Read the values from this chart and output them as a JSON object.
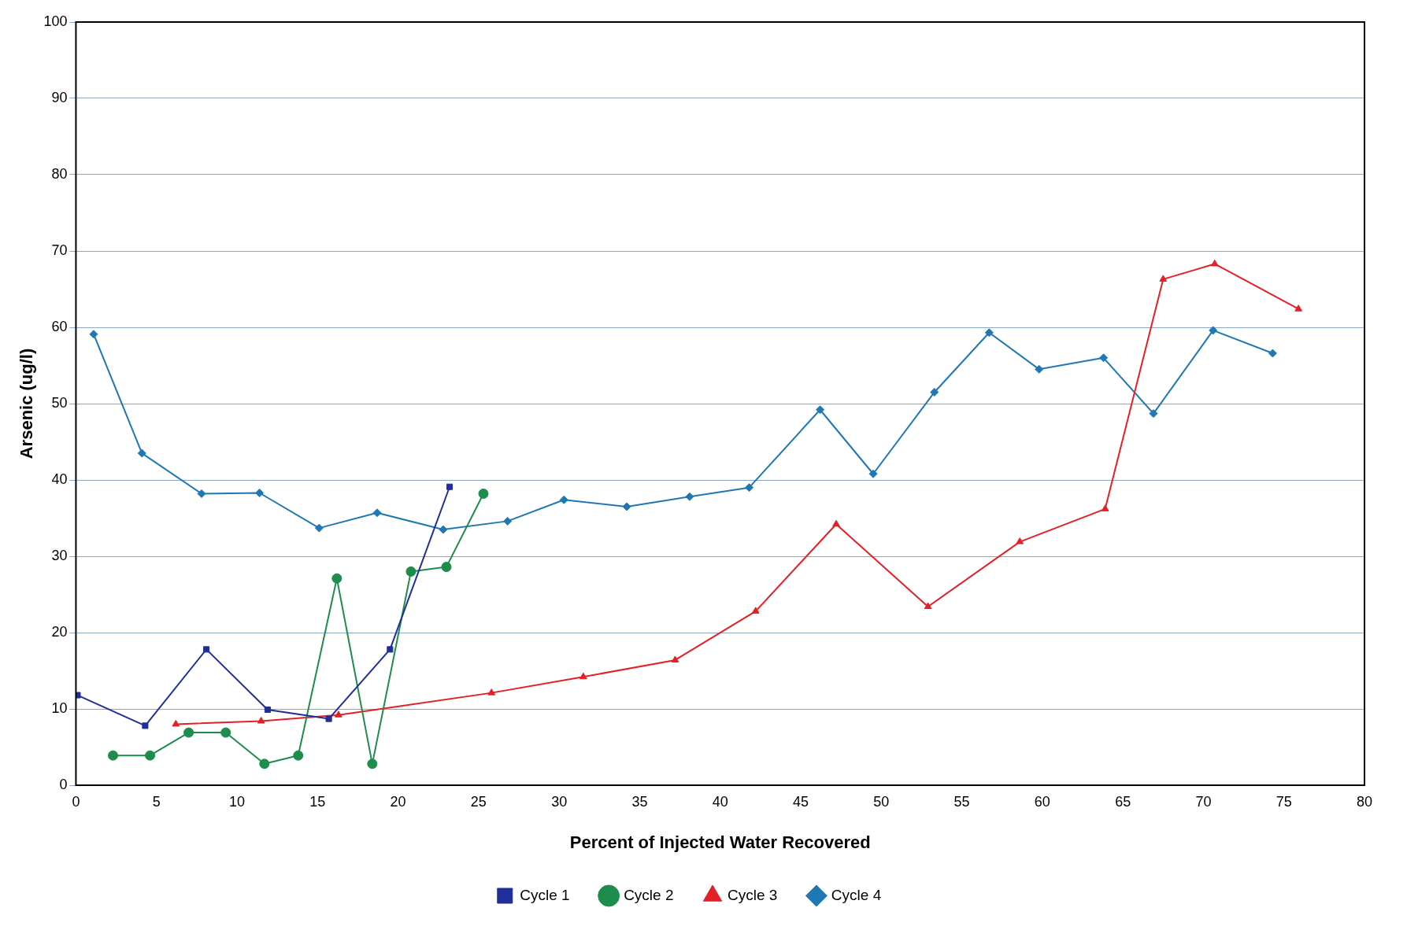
{
  "chart_data": {
    "type": "line",
    "xlabel": "Percent of Injected Water Recovered",
    "ylabel": "Arsenic (ug/l)",
    "xlim": [
      0,
      80
    ],
    "xticks": [
      0,
      5,
      10,
      15,
      20,
      25,
      30,
      35,
      40,
      45,
      50,
      55,
      60,
      65,
      70,
      75,
      80
    ],
    "ylim": [
      0,
      100
    ],
    "yticks": [
      0,
      10,
      20,
      30,
      40,
      50,
      60,
      70,
      80,
      90,
      100
    ],
    "grid": "y",
    "legend": "bottom",
    "line_style": "solid",
    "series": [
      {
        "name": "Cycle 1",
        "color": "#1f2f9a",
        "marker": "square",
        "x": [
          0.1,
          4.3,
          8.1,
          11.9,
          15.7,
          19.5,
          23.2
        ],
        "values": [
          11.8,
          7.8,
          17.8,
          9.9,
          8.7,
          17.8,
          39.1
        ]
      },
      {
        "name": "Cycle 2",
        "color": "#1e8c4a",
        "marker": "circle",
        "x": [
          2.3,
          4.6,
          7.0,
          9.3,
          11.7,
          13.8,
          16.2,
          18.4,
          20.8,
          23.0,
          25.3
        ],
        "values": [
          3.9,
          3.9,
          6.9,
          6.9,
          2.8,
          3.9,
          27.1,
          2.8,
          28.0,
          28.6,
          38.2
        ]
      },
      {
        "name": "Cycle 3",
        "color": "#e32026",
        "marker": "triangle",
        "x": [
          6.2,
          11.5,
          16.3,
          25.8,
          31.5,
          37.2,
          42.2,
          47.2,
          52.9,
          58.6,
          63.9,
          67.5,
          70.7,
          75.9
        ],
        "values": [
          8.0,
          8.4,
          9.2,
          12.1,
          14.2,
          16.4,
          22.8,
          34.2,
          23.4,
          31.9,
          36.2,
          66.3,
          68.3,
          62.4
        ]
      },
      {
        "name": "Cycle 4",
        "color": "#1f78b4",
        "marker": "diamond",
        "x": [
          1.1,
          4.1,
          7.8,
          11.4,
          15.1,
          18.7,
          22.8,
          26.8,
          30.3,
          34.2,
          38.1,
          41.8,
          46.2,
          49.5,
          53.3,
          56.7,
          59.8,
          63.8,
          66.9,
          70.6,
          74.3
        ],
        "values": [
          59.1,
          43.5,
          38.2,
          38.3,
          33.7,
          35.7,
          33.5,
          34.6,
          37.4,
          36.5,
          37.8,
          39.0,
          49.2,
          40.8,
          51.5,
          59.3,
          54.5,
          56.0,
          48.7,
          59.6,
          56.6
        ]
      }
    ]
  }
}
